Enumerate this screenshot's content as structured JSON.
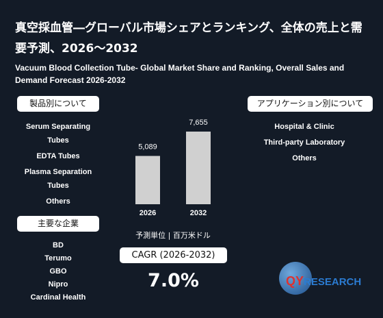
{
  "title": "真空採血管―グローバル市場シェアとランキング、全体の売上と需要予測、2026～2032",
  "subtitle": "Vacuum Blood Collection Tube- Global Market Share and Ranking, Overall Sales and Demand Forecast 2026-2032",
  "product_section": {
    "label": "製品別について",
    "items": [
      "Serum Separating Tubes",
      "EDTA Tubes",
      "Plasma Separation Tubes",
      "Others"
    ]
  },
  "company_section": {
    "label": "主要な企業",
    "items": [
      "BD",
      "Terumo",
      "GBO",
      "Nipro",
      "Cardinal Health"
    ]
  },
  "application_section": {
    "label": "アプリケーション別について",
    "items": [
      "Hospital & Clinic",
      "Third-party Laboratory",
      "Others"
    ]
  },
  "chart_data": {
    "type": "bar",
    "categories": [
      "2026",
      "2032"
    ],
    "values": [
      5089,
      7655
    ],
    "value_labels": [
      "5,089",
      "7,655"
    ],
    "color": "#d0d0d0",
    "unit_note": "予測単位 | 百万米ドル"
  },
  "cagr": {
    "label": "CAGR (2026-2032)",
    "value": "7.0%"
  },
  "logo": {
    "mark": "QY",
    "text": "RESEARCH"
  }
}
